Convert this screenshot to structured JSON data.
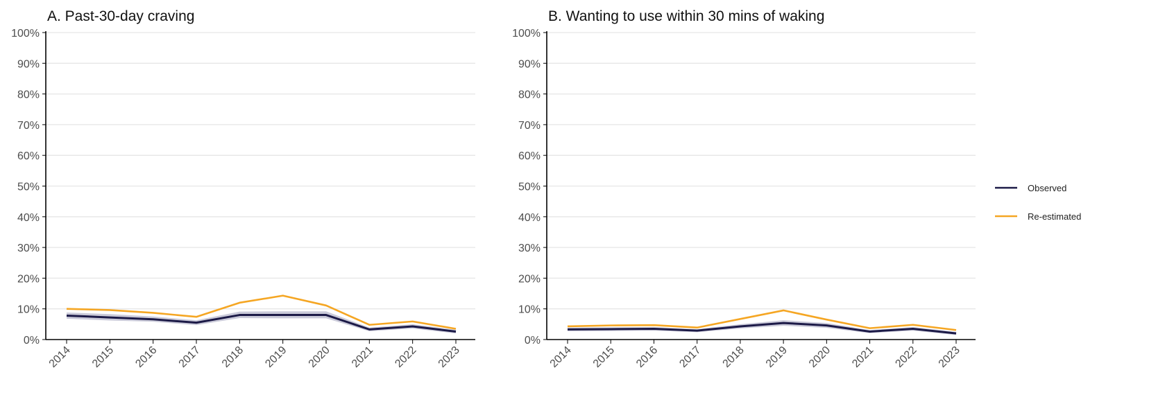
{
  "chart_data": [
    {
      "type": "line",
      "title": "A. Past-30-day craving",
      "xlabel": "",
      "ylabel": "",
      "x": [
        "2014",
        "2015",
        "2016",
        "2017",
        "2018",
        "2019",
        "2020",
        "2021",
        "2022",
        "2023"
      ],
      "ylim": [
        0,
        100
      ],
      "yticks": [
        "0%",
        "10%",
        "20%",
        "30%",
        "40%",
        "50%",
        "60%",
        "70%",
        "80%",
        "90%",
        "100%"
      ],
      "grid": "horizontal",
      "series": [
        {
          "name": "Observed",
          "color": "#1c1a47",
          "values": [
            7.8,
            7.2,
            6.6,
            5.5,
            8.0,
            8.0,
            8.0,
            3.3,
            4.3,
            2.6
          ],
          "ci_lower": [
            6.8,
            6.2,
            5.8,
            4.7,
            7.0,
            6.9,
            6.9,
            2.7,
            3.6,
            2.0
          ],
          "ci_upper": [
            8.8,
            8.3,
            7.5,
            6.3,
            9.1,
            9.2,
            9.2,
            3.9,
            5.0,
            3.2
          ]
        },
        {
          "name": "Re-estimated",
          "color": "#f5a623",
          "values": [
            10.0,
            9.6,
            8.7,
            7.4,
            12.0,
            14.3,
            11.1,
            4.8,
            5.9,
            3.5
          ]
        }
      ]
    },
    {
      "type": "line",
      "title": "B. Wanting to use within 30 mins of waking",
      "xlabel": "",
      "ylabel": "",
      "x": [
        "2014",
        "2015",
        "2016",
        "2017",
        "2018",
        "2019",
        "2020",
        "2021",
        "2022",
        "2023"
      ],
      "ylim": [
        0,
        100
      ],
      "yticks": [
        "0%",
        "10%",
        "20%",
        "30%",
        "40%",
        "50%",
        "60%",
        "70%",
        "80%",
        "90%",
        "100%"
      ],
      "grid": "horizontal",
      "series": [
        {
          "name": "Observed",
          "color": "#1c1a47",
          "values": [
            3.3,
            3.4,
            3.5,
            2.9,
            4.3,
            5.4,
            4.6,
            2.6,
            3.5,
            2.0
          ],
          "ci_lower": [
            2.7,
            2.8,
            2.9,
            2.4,
            3.6,
            4.5,
            3.8,
            2.1,
            2.9,
            1.5
          ],
          "ci_upper": [
            3.9,
            4.0,
            4.1,
            3.4,
            5.0,
            6.3,
            5.4,
            3.1,
            4.1,
            2.5
          ]
        },
        {
          "name": "Re-estimated",
          "color": "#f5a623",
          "values": [
            4.3,
            4.6,
            4.7,
            3.9,
            6.7,
            9.5,
            6.5,
            3.7,
            4.8,
            3.1
          ]
        }
      ]
    }
  ],
  "legend": {
    "placement": "right",
    "items": [
      {
        "label": "Observed",
        "color": "#1c1a47"
      },
      {
        "label": "Re-estimated",
        "color": "#f5a623"
      }
    ]
  },
  "colors": {
    "grid": "#e6e6e6",
    "axis": "#000000",
    "ci_band": "#b8b8cc"
  }
}
